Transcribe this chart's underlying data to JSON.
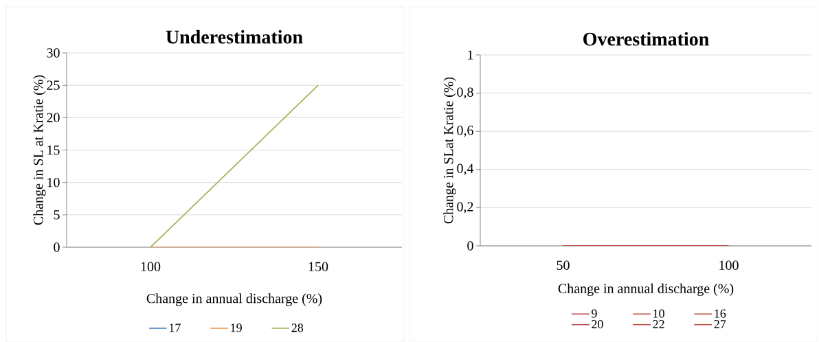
{
  "chart_data": [
    {
      "type": "line",
      "title": "Underestimation",
      "xlabel": "Change in annual discharge (%)",
      "ylabel": "Change in SL at Kratie (%)",
      "categories": [
        "100",
        "150"
      ],
      "series": [
        {
          "name": "17",
          "color": "#4a7ebb",
          "values": [
            null,
            null
          ]
        },
        {
          "name": "19",
          "color": "#f79646",
          "values": [
            0,
            0
          ]
        },
        {
          "name": "28",
          "color": "#9bbb59",
          "values": [
            0,
            25
          ]
        }
      ],
      "ylim": [
        0,
        30
      ],
      "yticks": [
        0,
        5,
        10,
        15,
        20,
        25,
        30
      ],
      "grid": "y",
      "legend": "bottom",
      "marker": "none"
    },
    {
      "type": "line",
      "title": "Overestimation",
      "xlabel": "Change in annual discharge (%)",
      "ylabel": "Change in SLat Kratie (%)",
      "categories": [
        "50",
        "100"
      ],
      "series": [
        {
          "name": "9",
          "color": "#c0504d",
          "values": [
            null,
            null
          ]
        },
        {
          "name": "10",
          "color": "#c0504d",
          "values": [
            null,
            null
          ]
        },
        {
          "name": "16",
          "color": "#c0504d",
          "values": [
            null,
            null
          ]
        },
        {
          "name": "20",
          "color": "#c0504d",
          "values": [
            null,
            null
          ]
        },
        {
          "name": "22",
          "color": "#c0504d",
          "values": [
            null,
            null
          ]
        },
        {
          "name": "27",
          "color": "#c0504d",
          "values": [
            0,
            0
          ]
        }
      ],
      "ylim": [
        0,
        1
      ],
      "yticks": [
        0,
        {
          "value": 0.2,
          "label": "0,2"
        },
        {
          "value": 0.4,
          "label": "0,4"
        },
        {
          "value": 0.6,
          "label": "0,6"
        },
        {
          "value": 0.8,
          "label": "0,8"
        },
        1
      ],
      "grid": "y",
      "legend": "bottom",
      "marker": "none"
    }
  ]
}
